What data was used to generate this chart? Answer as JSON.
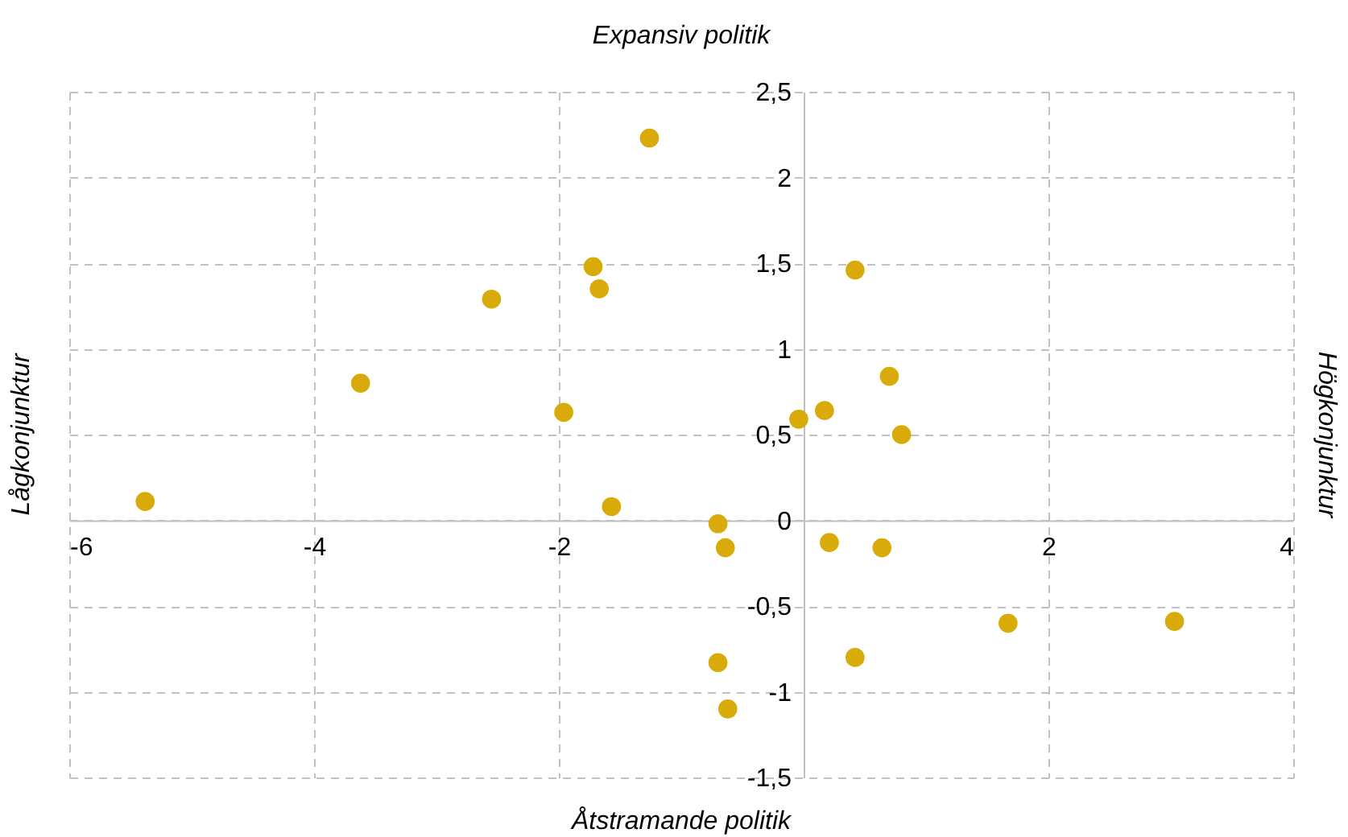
{
  "chart_data": {
    "type": "scatter",
    "xlabel": "Åtstramande politik",
    "ylabel": "Lågkonjunktur",
    "annotations": [
      "Expansiv politik",
      "Högkonjunktur"
    ],
    "x": [
      -5.38,
      -3.62,
      -2.55,
      -1.96,
      -1.72,
      -1.67,
      -1.57,
      -1.26,
      -0.7,
      -0.64,
      -0.7,
      -0.62,
      -0.04,
      0.17,
      0.21,
      0.42,
      0.42,
      0.7,
      0.8,
      0.64,
      1.67,
      3.03
    ],
    "series": [
      {
        "color": "#d9ab0a",
        "values": [
          0.11,
          0.8,
          1.29,
          0.63,
          1.48,
          1.35,
          0.08,
          2.23,
          -0.02,
          -0.16,
          -0.83,
          -1.1,
          0.59,
          0.64,
          -0.13,
          1.46,
          -0.8,
          0.84,
          0.5,
          -0.16,
          -0.6,
          -0.59
        ]
      }
    ],
    "xlim": [
      -6,
      4
    ],
    "xticks": [
      -6,
      -4,
      -2,
      {
        "value": 0,
        "label": null
      },
      2,
      4
    ],
    "ylim": [
      -1.5,
      2.5
    ],
    "yticks": [
      {
        "value": -1.5,
        "label": "-1,5"
      },
      {
        "value": -1,
        "label": "-1"
      },
      {
        "value": -0.5,
        "label": "-0,5"
      },
      {
        "value": 0,
        "label": "0"
      },
      {
        "value": 0.5,
        "label": "0,5"
      },
      {
        "value": 1,
        "label": "1"
      },
      {
        "value": 1.5,
        "label": "1,5"
      },
      {
        "value": 2,
        "label": "2"
      },
      {
        "value": 2.5,
        "label": "2,5"
      }
    ],
    "grid": true,
    "marker": "circle",
    "legend": false
  }
}
